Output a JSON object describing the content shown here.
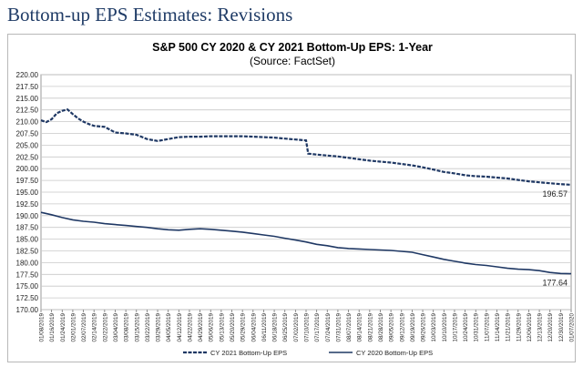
{
  "slide_title": "Bottom-up EPS Estimates: Revisions",
  "chart_data": {
    "type": "line",
    "title": "S&P 500 CY 2020 & CY 2021 Bottom-Up  EPS: 1-Year",
    "subtitle": "(Source: FactSet)",
    "xlabel": "",
    "ylabel": "",
    "ylim": [
      170,
      220
    ],
    "yticks": [
      "220.00",
      "217.50",
      "215.00",
      "212.50",
      "210.00",
      "207.50",
      "205.00",
      "202.50",
      "200.00",
      "197.50",
      "195.00",
      "192.50",
      "190.00",
      "187.50",
      "185.00",
      "182.50",
      "180.00",
      "177.50",
      "175.00",
      "172.50",
      "170.00"
    ],
    "xticks": [
      "01/08/2019",
      "01/16/2019",
      "01/24/2019",
      "02/01/2019",
      "02/07/2019",
      "02/14/2019",
      "02/22/2019",
      "03/04/2019",
      "03/08/2019",
      "03/15/2019",
      "03/22/2019",
      "03/29/2019",
      "04/05/2019",
      "04/12/2019",
      "04/22/2019",
      "04/29/2019",
      "05/06/2019",
      "05/13/2019",
      "05/20/2019",
      "05/29/2019",
      "06/04/2019",
      "06/11/2019",
      "06/18/2019",
      "06/25/2019",
      "07/02/2019",
      "07/10/2019",
      "07/17/2019",
      "07/24/2019",
      "07/31/2019",
      "08/07/2019",
      "08/14/2019",
      "08/21/2019",
      "08/28/2019",
      "09/05/2019",
      "09/12/2019",
      "09/19/2019",
      "09/26/2019",
      "10/03/2019",
      "10/10/2019",
      "10/17/2019",
      "10/24/2019",
      "10/31/2019",
      "11/07/2019",
      "11/14/2019",
      "11/21/2019",
      "11/29/2019",
      "12/06/2019",
      "12/13/2019",
      "12/20/2019",
      "12/30/2019",
      "01/07/2020"
    ],
    "grid": true,
    "legend": "bottom",
    "series": [
      {
        "name": "CY 2021 Bottom-Up EPS",
        "style": "dashed",
        "color": "#1f3864",
        "end_label": "196.57",
        "points": [
          [
            0,
            210.3
          ],
          [
            0.5,
            209.9
          ],
          [
            1,
            210.5
          ],
          [
            1.5,
            211.8
          ],
          [
            2,
            212.3
          ],
          [
            2.5,
            212.6
          ],
          [
            3,
            211.6
          ],
          [
            3.5,
            210.7
          ],
          [
            4,
            210.0
          ],
          [
            4.5,
            209.5
          ],
          [
            5,
            209.1
          ],
          [
            6,
            208.9
          ],
          [
            7,
            207.7
          ],
          [
            8,
            207.5
          ],
          [
            9,
            207.2
          ],
          [
            10,
            206.3
          ],
          [
            11,
            205.9
          ],
          [
            12,
            206.3
          ],
          [
            13,
            206.7
          ],
          [
            14,
            206.8
          ],
          [
            15,
            206.8
          ],
          [
            16,
            206.9
          ],
          [
            17,
            206.9
          ],
          [
            18,
            206.9
          ],
          [
            19,
            206.9
          ],
          [
            20,
            206.8
          ],
          [
            21,
            206.7
          ],
          [
            22,
            206.6
          ],
          [
            23,
            206.4
          ],
          [
            24,
            206.2
          ],
          [
            25,
            206.0
          ],
          [
            25.2,
            203.2
          ],
          [
            26,
            203.0
          ],
          [
            27,
            202.8
          ],
          [
            28,
            202.6
          ],
          [
            29,
            202.3
          ],
          [
            30,
            202.0
          ],
          [
            31,
            201.7
          ],
          [
            32,
            201.5
          ],
          [
            33,
            201.3
          ],
          [
            34,
            201.0
          ],
          [
            35,
            200.7
          ],
          [
            36,
            200.3
          ],
          [
            37,
            199.8
          ],
          [
            38,
            199.3
          ],
          [
            39,
            199.0
          ],
          [
            40,
            198.6
          ],
          [
            41,
            198.4
          ],
          [
            42,
            198.3
          ],
          [
            43,
            198.1
          ],
          [
            44,
            197.9
          ],
          [
            45,
            197.6
          ],
          [
            46,
            197.3
          ],
          [
            47,
            197.1
          ],
          [
            48,
            196.9
          ],
          [
            49,
            196.7
          ],
          [
            50,
            196.57
          ]
        ]
      },
      {
        "name": "CY 2020 Bottom-Up EPS",
        "style": "solid",
        "color": "#1f3864",
        "end_label": "177.64",
        "points": [
          [
            0,
            190.7
          ],
          [
            1,
            190.2
          ],
          [
            2,
            189.6
          ],
          [
            3,
            189.1
          ],
          [
            4,
            188.8
          ],
          [
            5,
            188.6
          ],
          [
            6,
            188.3
          ],
          [
            7,
            188.1
          ],
          [
            8,
            187.9
          ],
          [
            9,
            187.7
          ],
          [
            10,
            187.5
          ],
          [
            11,
            187.2
          ],
          [
            12,
            187.0
          ],
          [
            13,
            186.9
          ],
          [
            14,
            187.1
          ],
          [
            15,
            187.2
          ],
          [
            16,
            187.1
          ],
          [
            17,
            186.9
          ],
          [
            18,
            186.7
          ],
          [
            19,
            186.5
          ],
          [
            20,
            186.2
          ],
          [
            21,
            185.9
          ],
          [
            22,
            185.6
          ],
          [
            23,
            185.2
          ],
          [
            24,
            184.8
          ],
          [
            25,
            184.4
          ],
          [
            26,
            183.9
          ],
          [
            27,
            183.6
          ],
          [
            28,
            183.2
          ],
          [
            29,
            183.0
          ],
          [
            30,
            182.9
          ],
          [
            31,
            182.8
          ],
          [
            32,
            182.7
          ],
          [
            33,
            182.6
          ],
          [
            34,
            182.4
          ],
          [
            35,
            182.2
          ],
          [
            36,
            181.7
          ],
          [
            37,
            181.2
          ],
          [
            38,
            180.7
          ],
          [
            39,
            180.3
          ],
          [
            40,
            179.9
          ],
          [
            41,
            179.6
          ],
          [
            42,
            179.4
          ],
          [
            43,
            179.1
          ],
          [
            44,
            178.8
          ],
          [
            45,
            178.6
          ],
          [
            46,
            178.5
          ],
          [
            47,
            178.3
          ],
          [
            48,
            177.9
          ],
          [
            49,
            177.7
          ],
          [
            50,
            177.64
          ]
        ]
      }
    ]
  }
}
